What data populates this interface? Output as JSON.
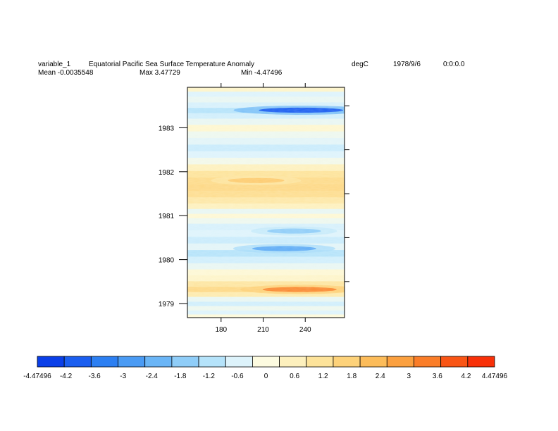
{
  "header": {
    "variable": "variable_1",
    "title": "Equatorial Pacific Sea Surface Temperature Anomaly",
    "units": "degC",
    "date": "1978/9/6",
    "time": "0:0:0.0",
    "mean": "Mean -0.0035548",
    "max": "Max 3.47729",
    "min": "Min -4.47496"
  },
  "chart_data": {
    "type": "heatmap",
    "title": "Equatorial Pacific Sea Surface Temperature Anomaly",
    "units": "degC",
    "xlabel": "",
    "ylabel": "",
    "x_ticks": [
      "180",
      "210",
      "240"
    ],
    "x_tick_values": [
      180,
      210,
      240
    ],
    "xlim": [
      156,
      268
    ],
    "y_ticks": [
      "1979",
      "1980",
      "1981",
      "1982",
      "1983"
    ],
    "y_tick_values": [
      1979,
      1980,
      1981,
      1982,
      1983
    ],
    "ylim": [
      1978.68,
      1983.92
    ],
    "grid": false,
    "legend": "bottom colorbar",
    "bands": [
      {
        "y": 1978.72,
        "v": 0.1
      },
      {
        "y": 1978.8,
        "v": -0.6
      },
      {
        "y": 1978.9,
        "v": -0.3
      },
      {
        "y": 1979.0,
        "v": -0.8
      },
      {
        "y": 1979.1,
        "v": -0.4
      },
      {
        "y": 1979.22,
        "v": 0.9
      },
      {
        "y": 1979.32,
        "v": 1.6
      },
      {
        "y": 1979.45,
        "v": 1.1
      },
      {
        "y": 1979.58,
        "v": 0.4
      },
      {
        "y": 1979.72,
        "v": 0.2
      },
      {
        "y": 1979.85,
        "v": -0.4
      },
      {
        "y": 1980.0,
        "v": -0.8
      },
      {
        "y": 1980.15,
        "v": -1.2
      },
      {
        "y": 1980.3,
        "v": -0.5
      },
      {
        "y": 1980.45,
        "v": -0.9
      },
      {
        "y": 1980.6,
        "v": -0.6
      },
      {
        "y": 1980.75,
        "v": -0.7
      },
      {
        "y": 1980.9,
        "v": -0.3
      },
      {
        "y": 1981.0,
        "v": 0.2
      },
      {
        "y": 1981.1,
        "v": -0.4
      },
      {
        "y": 1981.22,
        "v": 0.6
      },
      {
        "y": 1981.35,
        "v": 1.0
      },
      {
        "y": 1981.5,
        "v": 1.4
      },
      {
        "y": 1981.65,
        "v": 1.6
      },
      {
        "y": 1981.8,
        "v": 1.5
      },
      {
        "y": 1981.95,
        "v": 1.2
      },
      {
        "y": 1982.1,
        "v": 0.6
      },
      {
        "y": 1982.25,
        "v": -0.2
      },
      {
        "y": 1982.4,
        "v": -0.6
      },
      {
        "y": 1982.55,
        "v": -0.9
      },
      {
        "y": 1982.7,
        "v": -0.5
      },
      {
        "y": 1982.85,
        "v": -0.3
      },
      {
        "y": 1983.0,
        "v": 0.3
      },
      {
        "y": 1983.15,
        "v": -0.4
      },
      {
        "y": 1983.28,
        "v": -0.8
      },
      {
        "y": 1983.4,
        "v": -1.2
      },
      {
        "y": 1983.52,
        "v": -0.7
      },
      {
        "y": 1983.65,
        "v": -0.4
      },
      {
        "y": 1983.78,
        "v": -0.6
      },
      {
        "y": 1983.88,
        "v": 0.4
      }
    ],
    "anomalies": [
      {
        "x": 237,
        "y": 1983.4,
        "v": -4.2
      },
      {
        "x": 236,
        "y": 1979.32,
        "v": 3.4
      },
      {
        "x": 225,
        "y": 1980.25,
        "v": -2.6
      },
      {
        "x": 205,
        "y": 1981.8,
        "v": 2.0
      },
      {
        "x": 232,
        "y": 1980.65,
        "v": -1.8
      }
    ],
    "colorbar": {
      "labels": [
        "-4.47496",
        "-4.2",
        "-3.6",
        "-3",
        "-2.4",
        "-1.8",
        "-1.2",
        "-0.6",
        "0",
        "0.6",
        "1.2",
        "1.8",
        "2.4",
        "3",
        "3.6",
        "4.2",
        "4.47496"
      ],
      "values": [
        -4.47496,
        -4.2,
        -3.6,
        -3,
        -2.4,
        -1.8,
        -1.2,
        -0.6,
        0,
        0.6,
        1.2,
        1.8,
        2.4,
        3,
        3.6,
        4.2,
        4.47496
      ],
      "colors": [
        "#0a3fe8",
        "#1a5ef0",
        "#2c7ff2",
        "#4a9bf4",
        "#6ab5f6",
        "#8fcdf8",
        "#b5e3fa",
        "#ddf3fb",
        "#fdfbe0",
        "#fdf0bd",
        "#fde39a",
        "#fdd27a",
        "#fcbc5a",
        "#fba03f",
        "#fa7d28",
        "#f95515",
        "#f83008"
      ]
    }
  }
}
